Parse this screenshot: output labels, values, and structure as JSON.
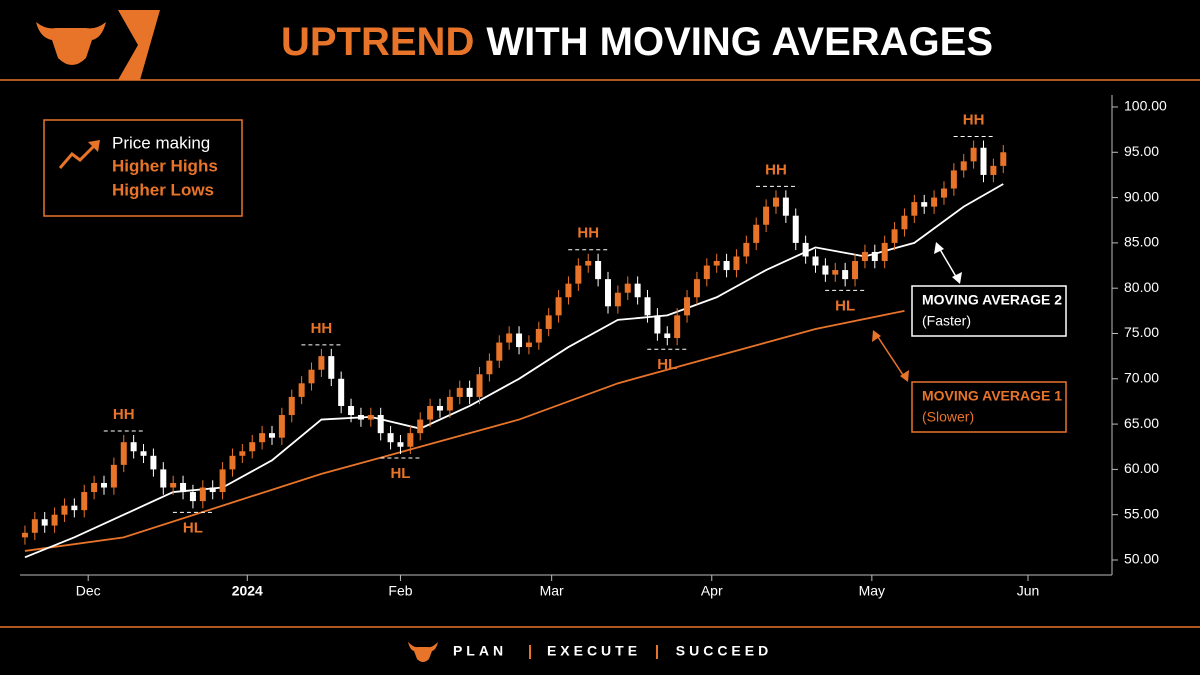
{
  "header": {
    "title_accent": "UPTREND",
    "title_rest": "WITH MOVING AVERAGES"
  },
  "chart_data": {
    "type": "candlestick",
    "x": [
      0,
      1,
      2,
      3,
      4,
      5,
      6,
      7,
      8,
      9,
      10,
      11,
      12,
      13,
      14,
      15,
      16,
      17,
      18,
      19,
      20,
      21,
      22,
      23,
      24,
      25,
      26,
      27,
      28,
      29,
      30,
      31,
      32,
      33,
      34,
      35,
      36,
      37,
      38,
      39,
      40,
      41,
      42,
      43,
      44,
      45,
      46,
      47,
      48,
      49,
      50,
      51,
      52,
      53,
      54,
      55,
      56,
      57,
      58,
      59,
      60,
      61,
      62,
      63,
      64,
      65,
      66,
      67,
      68,
      69,
      70,
      71,
      72,
      73,
      74,
      75,
      76,
      77,
      78,
      79,
      80,
      81,
      82,
      83,
      84,
      85,
      86,
      87,
      88,
      89,
      90,
      91,
      92,
      93,
      94,
      95,
      96,
      97,
      98,
      99
    ],
    "open": [
      52.5,
      53,
      54.5,
      53.8,
      55,
      56,
      55.5,
      57.5,
      58.5,
      58,
      60.5,
      63,
      62,
      61.5,
      60,
      58,
      58.5,
      57.5,
      56.5,
      58,
      57.5,
      60,
      61.5,
      62,
      63,
      64,
      63.5,
      66,
      68,
      69.5,
      71,
      72.5,
      70,
      67,
      66,
      65.5,
      66,
      64,
      63,
      62.5,
      64,
      65.5,
      67,
      66.5,
      68,
      69,
      68,
      70.5,
      72,
      74,
      75,
      73.5,
      74,
      75.5,
      77,
      79,
      80.5,
      82.5,
      83,
      81,
      78,
      79.5,
      80.5,
      79,
      77,
      75,
      74.5,
      77,
      79,
      81,
      82.5,
      83,
      82,
      83.5,
      85,
      87,
      89,
      90,
      88,
      85,
      83.5,
      82.5,
      81.5,
      82,
      81,
      83,
      84,
      83,
      85,
      86.5,
      88,
      89.5,
      89,
      90,
      91,
      93,
      94,
      95.5,
      92.5,
      93.5
    ],
    "high": [
      53.8,
      55.3,
      55.3,
      55.8,
      56.8,
      56.8,
      58.3,
      59.3,
      59.3,
      61.3,
      63.8,
      63.8,
      62.8,
      62.3,
      60.8,
      59.3,
      59.3,
      58.3,
      58.8,
      58.8,
      60.8,
      62.3,
      62.8,
      63.8,
      64.8,
      64.8,
      66.8,
      68.8,
      70.3,
      71.8,
      73.3,
      73.3,
      70.8,
      67.8,
      66.8,
      66.8,
      66.8,
      64.8,
      63.8,
      64.8,
      66.3,
      67.8,
      67.8,
      68.8,
      69.8,
      69.8,
      71.3,
      72.8,
      74.8,
      75.8,
      75.8,
      74.8,
      76.3,
      77.8,
      79.8,
      81.3,
      83.3,
      83.8,
      83.8,
      81.8,
      80.3,
      81.3,
      81.3,
      79.8,
      77.8,
      75.8,
      77.8,
      79.8,
      81.8,
      83.3,
      83.8,
      83.8,
      84.3,
      85.8,
      87.8,
      89.8,
      90.8,
      90.8,
      88.8,
      85.8,
      84.3,
      83.3,
      82.8,
      82.8,
      83.8,
      84.8,
      84.8,
      85.8,
      87.3,
      88.8,
      90.3,
      90.3,
      90.8,
      91.8,
      93.8,
      94.8,
      96.3,
      96.3,
      94.3,
      95.8
    ],
    "low": [
      51.7,
      52.2,
      53,
      53,
      54.2,
      54.7,
      54.7,
      56.7,
      57.2,
      57.2,
      59.7,
      61.2,
      60.7,
      59.2,
      57.2,
      57.2,
      56.7,
      55.7,
      55.7,
      56.7,
      56.7,
      59.2,
      60.7,
      61.2,
      62.2,
      62.7,
      62.7,
      65.2,
      67.2,
      68.7,
      70.2,
      69.2,
      66.2,
      65.2,
      64.7,
      64.7,
      63.2,
      62.2,
      61.7,
      61.7,
      63.2,
      64.7,
      65.7,
      65.7,
      67.2,
      67.2,
      67.2,
      69.7,
      71.2,
      73.2,
      72.7,
      72.7,
      73.2,
      74.7,
      76.2,
      78.2,
      79.7,
      81.7,
      80.2,
      77.2,
      77.2,
      78.7,
      78.2,
      76.2,
      74.2,
      73.7,
      73.7,
      76.2,
      78.2,
      80.2,
      81.7,
      81.2,
      81.2,
      82.7,
      84.2,
      86.2,
      88.2,
      87.2,
      84.2,
      82.7,
      81.7,
      80.7,
      80.7,
      80.2,
      80.2,
      82.2,
      82.2,
      82.2,
      84.2,
      85.7,
      87.2,
      88.2,
      88.2,
      89.2,
      90.2,
      92.2,
      93.2,
      91.7,
      91.7,
      92.7
    ],
    "close": [
      53,
      54.5,
      53.8,
      55,
      56,
      55.5,
      57.5,
      58.5,
      58,
      60.5,
      63,
      62,
      61.5,
      60,
      58,
      58.5,
      57.5,
      56.5,
      58,
      57.5,
      60,
      61.5,
      62,
      63,
      64,
      63.5,
      66,
      68,
      69.5,
      71,
      72.5,
      70,
      67,
      66,
      65.5,
      66,
      64,
      63,
      62.5,
      64,
      65.5,
      67,
      66.5,
      68,
      69,
      68,
      70.5,
      72,
      74,
      75,
      73.5,
      74,
      75.5,
      77,
      79,
      80.5,
      82.5,
      83,
      81,
      78,
      79.5,
      80.5,
      79,
      77,
      75,
      74.5,
      77,
      79,
      81,
      82.5,
      83,
      82,
      83.5,
      85,
      87,
      89,
      90,
      88,
      85,
      83.5,
      82.5,
      81.5,
      82,
      81,
      83,
      84,
      83,
      85,
      86.5,
      88,
      89.5,
      89,
      90,
      91,
      93,
      94,
      95.5,
      92.5,
      93.5,
      95
    ],
    "up_color": "#e8742a",
    "down_color": "#ffffff",
    "lines": [
      {
        "name": "MOVING AVERAGE 2",
        "note": "(Faster)",
        "color": "#ffffff",
        "x": [
          0,
          5,
          10,
          15,
          20,
          25,
          30,
          35,
          40,
          45,
          50,
          55,
          60,
          65,
          70,
          75,
          80,
          85,
          90,
          95,
          99
        ],
        "values": [
          50.3,
          52.5,
          55,
          57.5,
          58,
          61,
          65.5,
          65.8,
          64.5,
          67,
          70,
          73.5,
          76.5,
          77,
          79,
          82,
          84.5,
          83.5,
          85,
          89,
          91.5
        ]
      },
      {
        "name": "MOVING AVERAGE 1",
        "note": "(Slower)",
        "color": "#e8742a",
        "x": [
          0,
          10,
          20,
          30,
          40,
          50,
          60,
          70,
          80,
          89
        ],
        "values": [
          51,
          52.5,
          56,
          59.5,
          62.5,
          65.5,
          69.5,
          72.5,
          75.5,
          77.5
        ]
      }
    ],
    "annotations": [
      {
        "label": "HH",
        "x": 10
      },
      {
        "label": "HL",
        "x": 17
      },
      {
        "label": "HH",
        "x": 30
      },
      {
        "label": "HL",
        "x": 38
      },
      {
        "label": "HH",
        "x": 57
      },
      {
        "label": "HL",
        "x": 65
      },
      {
        "label": "HH",
        "x": 76
      },
      {
        "label": "HL",
        "x": 83
      },
      {
        "label": "HH",
        "x": 96
      }
    ],
    "legend_box": {
      "line1": "Price making",
      "line2": "Higher Highs",
      "line3": "Higher Lows"
    },
    "xlim": [
      -0.5,
      109.8
    ],
    "xticks": [
      {
        "value": 6.4,
        "label": "Dec"
      },
      {
        "value": 22.5,
        "label": "2024"
      },
      {
        "value": 38,
        "label": "Feb"
      },
      {
        "value": 53.3,
        "label": "Mar"
      },
      {
        "value": 69.5,
        "label": "Apr"
      },
      {
        "value": 85.7,
        "label": "May"
      },
      {
        "value": 101.5,
        "label": "Jun"
      }
    ],
    "ylim": [
      48.3,
      101.3
    ],
    "yticks": [
      {
        "value": 50,
        "label": "50.00"
      },
      {
        "value": 55,
        "label": "55.00"
      },
      {
        "value": 60,
        "label": "60.00"
      },
      {
        "value": 65,
        "label": "65.00"
      },
      {
        "value": 70,
        "label": "70.00"
      },
      {
        "value": 75,
        "label": "75.00"
      },
      {
        "value": 80,
        "label": "80.00"
      },
      {
        "value": 85,
        "label": "85.00"
      },
      {
        "value": 90,
        "label": "90.00"
      },
      {
        "value": 95,
        "label": "95.00"
      },
      {
        "value": 100,
        "label": "100.00"
      }
    ]
  },
  "footer": {
    "items": [
      "PLAN",
      "EXECUTE",
      "SUCCEED"
    ]
  }
}
